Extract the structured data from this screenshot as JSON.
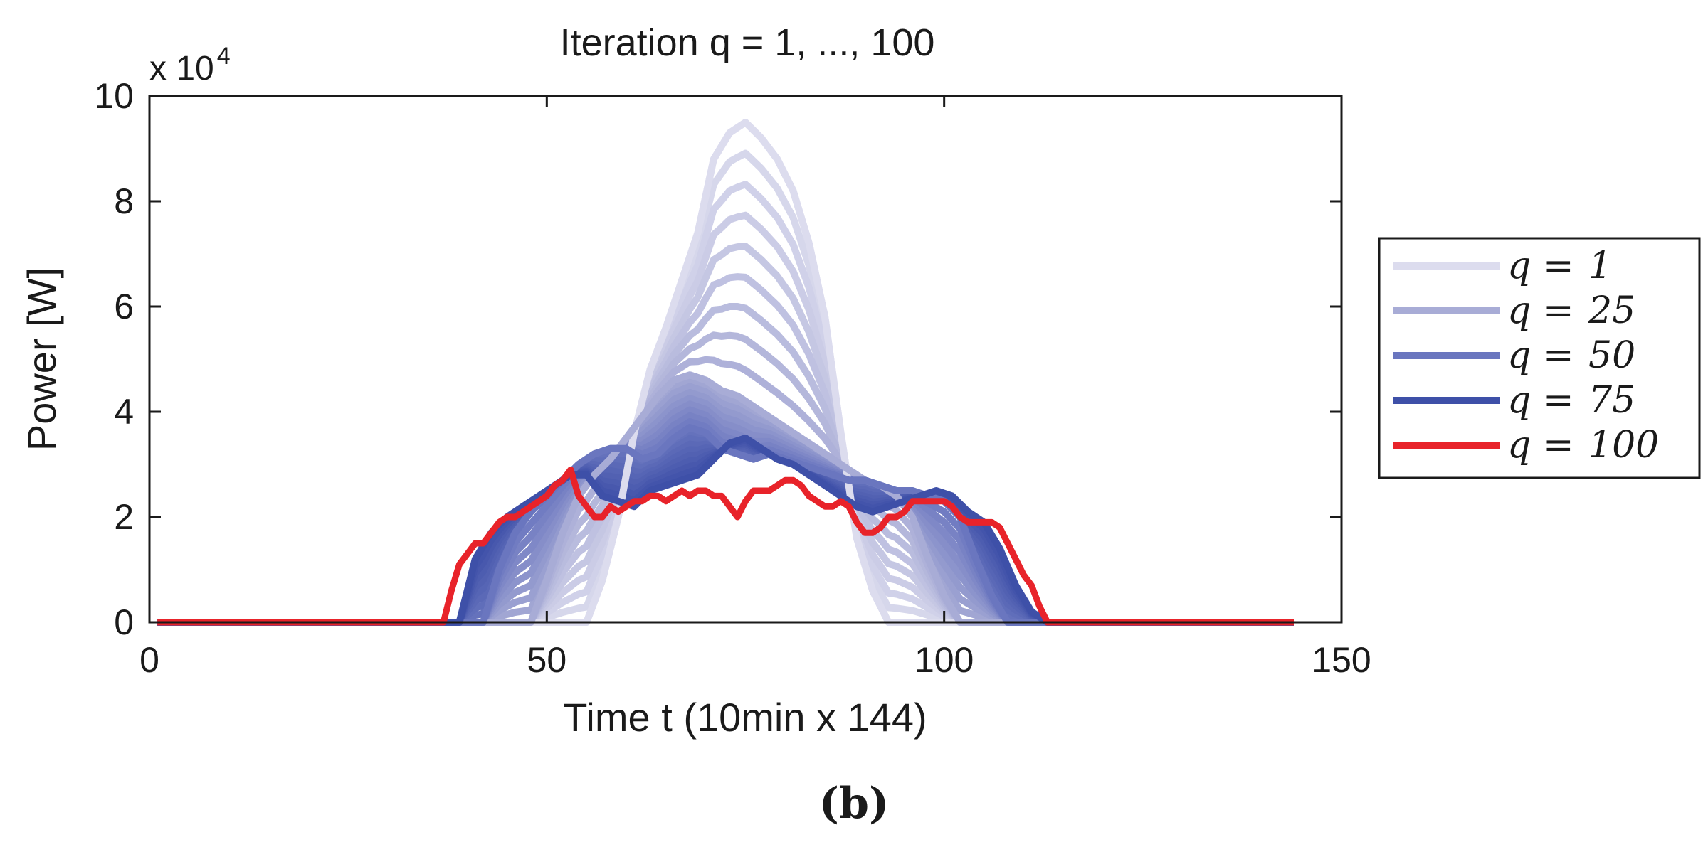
{
  "chart_data": {
    "type": "line",
    "title": "Iteration q = 1, ..., 100",
    "xlabel": "Time t (10min x 144)",
    "ylabel": "Power [W]",
    "y_multiplier": "x 10",
    "y_multiplier_exp": "4",
    "xlim": [
      0,
      150
    ],
    "ylim": [
      0,
      100000
    ],
    "xticks": [
      0,
      50,
      100,
      150
    ],
    "xtick_labels": [
      "0",
      "50",
      "100",
      "150"
    ],
    "yticks": [
      0,
      20000,
      40000,
      60000,
      80000,
      100000
    ],
    "ytick_labels": [
      "0",
      "2",
      "4",
      "6",
      "8",
      "10"
    ],
    "grid": false,
    "legend_position": "right",
    "panel_label": "(b)",
    "series": [
      {
        "name": "q = 1",
        "legend_q": "1",
        "color": "#dcdcee",
        "x": [
          1,
          55,
          57,
          59,
          61,
          63,
          65,
          67,
          69,
          71,
          73,
          75,
          77,
          79,
          81,
          83,
          85,
          87,
          89,
          91,
          93,
          95,
          144
        ],
        "y": [
          0,
          0,
          8000,
          20000,
          36000,
          48000,
          56000,
          65000,
          74000,
          88000,
          93000,
          95000,
          92000,
          88000,
          82000,
          72000,
          58000,
          36000,
          16000,
          6000,
          0,
          0,
          0
        ]
      },
      {
        "name": "q = 25",
        "legend_q": "25",
        "color": "#a8acd6",
        "x": [
          1,
          48,
          50,
          52,
          54,
          56,
          58,
          60,
          62,
          64,
          66,
          68,
          70,
          72,
          74,
          76,
          78,
          80,
          82,
          84,
          86,
          88,
          90,
          92,
          94,
          96,
          98,
          100,
          102,
          144
        ],
        "y": [
          0,
          0,
          8000,
          17000,
          24000,
          28000,
          31000,
          35000,
          39000,
          43000,
          46000,
          47000,
          46000,
          44000,
          43000,
          41000,
          39000,
          37000,
          35000,
          33000,
          31000,
          29000,
          27000,
          26000,
          24000,
          20000,
          12000,
          5000,
          0,
          0
        ]
      },
      {
        "name": "q = 50",
        "legend_q": "50",
        "color": "#6a76bf",
        "x": [
          1,
          42,
          44,
          46,
          48,
          50,
          52,
          54,
          56,
          58,
          60,
          62,
          64,
          66,
          68,
          70,
          72,
          74,
          76,
          78,
          80,
          82,
          84,
          86,
          88,
          90,
          92,
          94,
          96,
          98,
          100,
          102,
          104,
          106,
          108,
          144
        ],
        "y": [
          0,
          0,
          10000,
          17000,
          21000,
          24000,
          27000,
          30000,
          32000,
          33000,
          33000,
          31000,
          32000,
          35000,
          37000,
          36000,
          33000,
          32000,
          31000,
          32000,
          31000,
          30000,
          29000,
          28000,
          27000,
          27000,
          26000,
          25000,
          25000,
          24000,
          23000,
          20000,
          12000,
          5000,
          0,
          0
        ]
      },
      {
        "name": "q = 75",
        "legend_q": "75",
        "color": "#3e50a8",
        "x": [
          1,
          39,
          41,
          43,
          45,
          47,
          49,
          51,
          53,
          55,
          57,
          59,
          61,
          63,
          65,
          67,
          69,
          71,
          73,
          75,
          77,
          79,
          81,
          83,
          85,
          87,
          89,
          91,
          93,
          95,
          97,
          99,
          101,
          103,
          105,
          107,
          109,
          111,
          113,
          144
        ],
        "y": [
          0,
          0,
          12000,
          17000,
          20000,
          22000,
          24000,
          26000,
          28000,
          28000,
          24000,
          23000,
          22000,
          25000,
          26000,
          27000,
          28000,
          31000,
          34000,
          35000,
          33000,
          31000,
          30000,
          28000,
          26000,
          24000,
          22000,
          21000,
          22000,
          23000,
          24000,
          25000,
          24000,
          21000,
          19000,
          14000,
          7000,
          2000,
          0,
          0
        ]
      },
      {
        "name": "q = 100",
        "legend_q": "100",
        "color": "#e8232a",
        "x": [
          1,
          37,
          38,
          39,
          40,
          41,
          42,
          43,
          44,
          45,
          46,
          48,
          50,
          51,
          52,
          53,
          54,
          55,
          56,
          57,
          58,
          59,
          60,
          61,
          62,
          63,
          64,
          65,
          66,
          67,
          68,
          69,
          70,
          71,
          72,
          73,
          74,
          75,
          76,
          77,
          78,
          79,
          80,
          81,
          82,
          83,
          84,
          85,
          86,
          87,
          88,
          89,
          90,
          91,
          92,
          93,
          94,
          95,
          96,
          97,
          98,
          99,
          100,
          101,
          102,
          103,
          104,
          105,
          106,
          107,
          108,
          109,
          110,
          111,
          112,
          113,
          144
        ],
        "y": [
          0,
          0,
          6000,
          11000,
          13000,
          15000,
          15000,
          17000,
          19000,
          20000,
          20000,
          22000,
          24000,
          26000,
          27000,
          29000,
          24000,
          22000,
          20000,
          20000,
          22000,
          21000,
          22000,
          23000,
          23000,
          24000,
          24000,
          23000,
          24000,
          25000,
          24000,
          25000,
          25000,
          24000,
          24000,
          22000,
          20000,
          23000,
          25000,
          25000,
          25000,
          26000,
          27000,
          27000,
          26000,
          24000,
          23000,
          22000,
          22000,
          23000,
          22000,
          19000,
          17000,
          17000,
          18000,
          20000,
          20000,
          21000,
          23000,
          23000,
          23000,
          23000,
          23000,
          22000,
          20000,
          19000,
          19000,
          19000,
          19000,
          18000,
          15000,
          12000,
          9000,
          7000,
          3000,
          0,
          0
        ]
      }
    ]
  }
}
